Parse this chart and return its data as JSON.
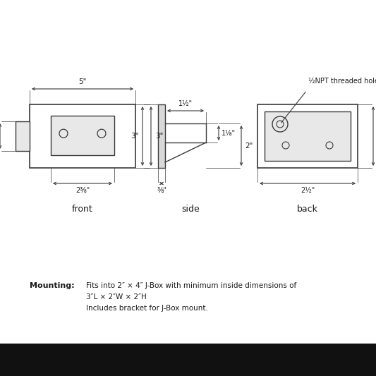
{
  "bg_color": "#ffffff",
  "line_color": "#3a3a3a",
  "text_color": "#1a1a1a",
  "dim_color": "#3a3a3a",
  "mounting_label": "Mounting:",
  "mounting_text1": "Fits into 2″ × 4″ J-Box with minimum inside dimensions of",
  "mounting_text2": "3″L × 2″W × 2″H",
  "mounting_text3": "Includes bracket for J-Box mount.",
  "footer_color": "#111111",
  "note_back": "½NPT threaded hole"
}
